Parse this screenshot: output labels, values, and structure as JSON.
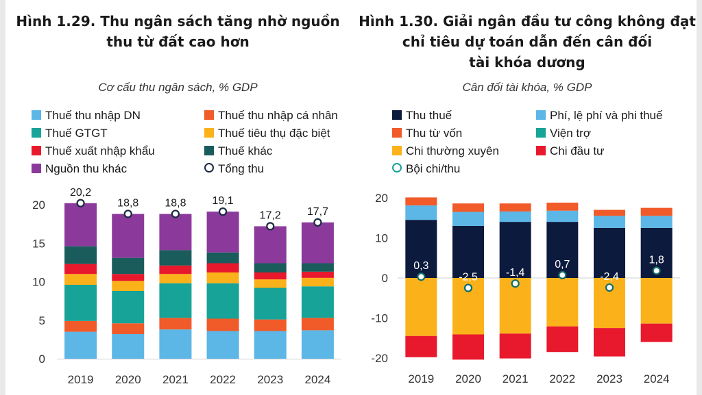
{
  "chart_data": [
    {
      "type": "bar",
      "stacked": true,
      "title": "Hình 1.29. Thu ngân sách tăng nhờ nguồn thu từ đất cao hơn",
      "title_lines": [
        "Hình 1.29. Thu ngân sách tăng nhờ nguồn",
        "thu từ đất cao hơn"
      ],
      "subtitle": "Cơ cấu thu ngân sách, % GDP",
      "categories": [
        "2019",
        "2020",
        "2021",
        "2022",
        "2023",
        "2024"
      ],
      "ylim": [
        0,
        20
      ],
      "yticks": [
        0,
        5,
        10,
        15,
        20
      ],
      "series": [
        {
          "name": "Thuế thu nhập DN",
          "color": "#5cb6e6",
          "values": [
            3.5,
            3.2,
            3.8,
            3.6,
            3.6,
            3.7
          ]
        },
        {
          "name": "Thuế thu nhập cá nhân",
          "color": "#f15a29",
          "values": [
            1.4,
            1.4,
            1.5,
            1.6,
            1.5,
            1.6
          ]
        },
        {
          "name": "Thuế GTGT",
          "color": "#17a398",
          "values": [
            4.7,
            4.2,
            4.5,
            4.6,
            4.1,
            4.1
          ]
        },
        {
          "name": "Thuế tiêu thụ đặc biệt",
          "color": "#fbb21a",
          "values": [
            1.4,
            1.3,
            1.2,
            1.4,
            1.1,
            1.1
          ]
        },
        {
          "name": "Thuế xuất nhập khẩu",
          "color": "#e8192c",
          "values": [
            1.3,
            0.9,
            1.1,
            1.2,
            0.9,
            0.8
          ]
        },
        {
          "name": "Thuế khác",
          "color": "#1a5c5c",
          "values": [
            2.3,
            2.1,
            2.0,
            1.4,
            1.2,
            1.1
          ]
        },
        {
          "name": "Nguồn thu khác",
          "color": "#8b3a9c",
          "values": [
            5.6,
            5.7,
            4.7,
            5.3,
            4.8,
            5.3
          ]
        }
      ],
      "line_series": {
        "name": "Tổng thu",
        "values": [
          20.2,
          18.8,
          18.8,
          19.1,
          17.2,
          17.7
        ],
        "labels": [
          "20,2",
          "18,8",
          "18,8",
          "19,1",
          "17,2",
          "17,7"
        ]
      }
    },
    {
      "type": "bar",
      "stacked": true,
      "title": "Hình 1.30. Giải ngân đầu tư công không đạt chỉ tiêu dự toán dẫn đến cân đối tài khóa dương",
      "title_lines": [
        "Hình 1.30. Giải ngân đầu tư công không đạt",
        "chỉ tiêu dự toán dẫn đến cân đối",
        "tài khóa dương"
      ],
      "subtitle": "Cân đối tài khóa, % GDP",
      "categories": [
        "2019",
        "2020",
        "2021",
        "2022",
        "2023",
        "2024"
      ],
      "ylim": [
        -20,
        20
      ],
      "yticks": [
        -20,
        -10,
        0,
        10,
        20
      ],
      "series": [
        {
          "name": "Thu thuế",
          "color": "#0c1a3d",
          "sign": "positive",
          "values": [
            14.5,
            13.0,
            14.0,
            14.0,
            12.5,
            12.5
          ]
        },
        {
          "name": "Phí, lệ phí và phi thuế",
          "color": "#5cb6e6",
          "sign": "positive",
          "values": [
            3.6,
            3.5,
            2.6,
            2.8,
            3.0,
            3.0
          ]
        },
        {
          "name": "Thu từ vốn",
          "color": "#f15a29",
          "sign": "positive",
          "values": [
            2.0,
            2.1,
            2.0,
            2.0,
            1.5,
            2.0
          ]
        },
        {
          "name": "Viện trợ",
          "color": "#17a398",
          "sign": "positive",
          "values": [
            0,
            0,
            0,
            0,
            0,
            0
          ]
        },
        {
          "name": "Chi thường xuyên",
          "color": "#fbb21a",
          "sign": "negative",
          "values": [
            -14.5,
            -14.1,
            -13.9,
            -12.1,
            -12.5,
            -11.4
          ]
        },
        {
          "name": "Chi đầu tư",
          "color": "#e8192c",
          "sign": "negative",
          "values": [
            -5.3,
            -6.3,
            -6.2,
            -6.4,
            -7.1,
            -4.6
          ]
        }
      ],
      "line_series": {
        "name": "Bội chi/thu",
        "values": [
          0.3,
          -2.5,
          -1.4,
          0.7,
          -2.4,
          1.8
        ],
        "labels": [
          "0,3",
          "-2,5",
          "-1,4",
          "0,7",
          "-2,4",
          "1,8"
        ]
      }
    }
  ]
}
